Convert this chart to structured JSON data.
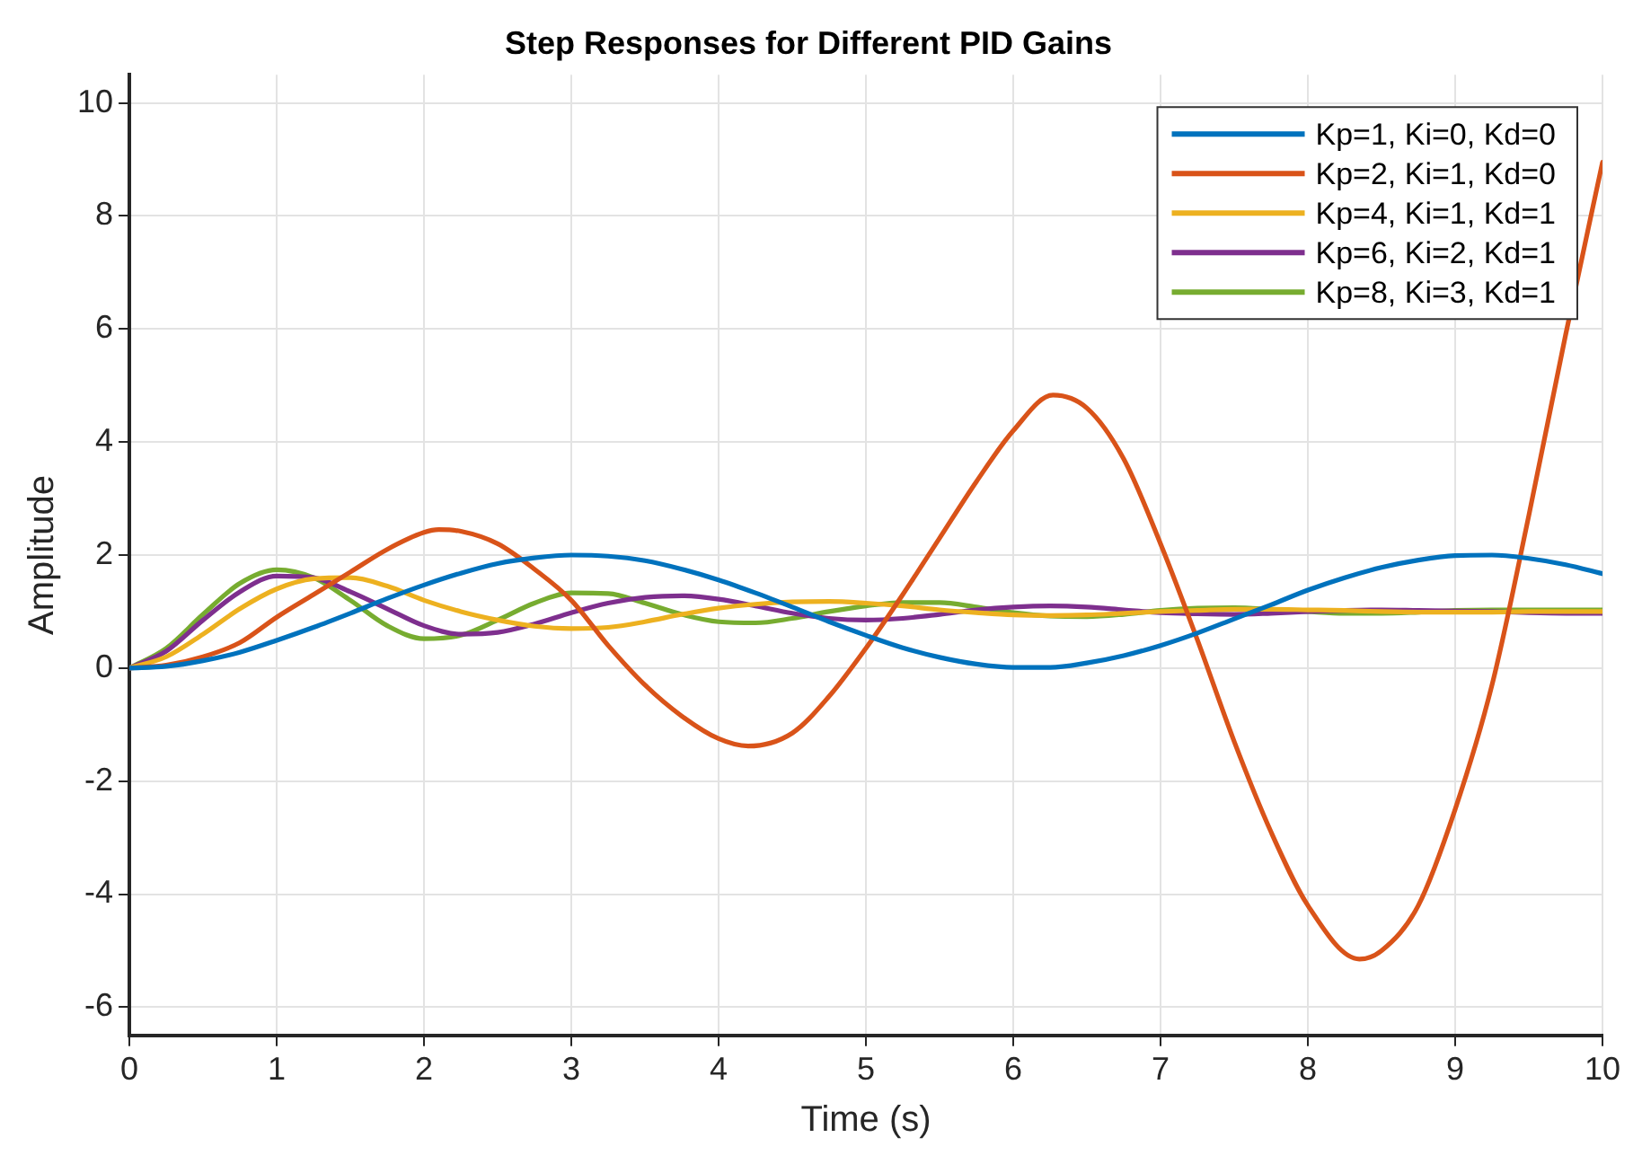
{
  "chart_data": {
    "type": "line",
    "title": "Step Responses for Different PID Gains",
    "xlabel": "Time (s)",
    "ylabel": "Amplitude",
    "x": [
      0,
      0.25,
      0.5,
      0.75,
      1,
      1.25,
      1.5,
      1.75,
      2,
      2.25,
      2.5,
      2.75,
      3,
      3.25,
      3.5,
      3.75,
      4,
      4.25,
      4.5,
      4.75,
      5,
      5.25,
      5.5,
      5.75,
      6,
      6.25,
      6.5,
      6.75,
      7,
      7.25,
      7.5,
      7.75,
      8,
      8.25,
      8.5,
      8.75,
      9,
      9.25,
      9.5,
      9.75,
      10
    ],
    "series": [
      {
        "name": "Kp=1, Ki=0, Kd=0",
        "color": "#0072bd",
        "values": [
          0,
          0.03,
          0.13,
          0.28,
          0.49,
          0.72,
          0.97,
          1.23,
          1.47,
          1.68,
          1.85,
          1.95,
          2.0,
          1.98,
          1.9,
          1.75,
          1.56,
          1.33,
          1.08,
          0.82,
          0.58,
          0.36,
          0.19,
          0.07,
          0.01,
          0.01,
          0.09,
          0.22,
          0.4,
          0.62,
          0.87,
          1.12,
          1.38,
          1.6,
          1.78,
          1.91,
          1.99,
          2.0,
          1.94,
          1.83,
          1.67
        ]
      },
      {
        "name": "Kp=2, Ki=1, Kd=0",
        "color": "#d95319",
        "x": [
          0,
          0.25,
          0.5,
          0.75,
          1,
          1.25,
          1.5,
          1.75,
          2,
          2.1,
          2.25,
          2.5,
          2.75,
          3,
          3.25,
          3.5,
          3.75,
          4,
          4.2,
          4.5,
          4.75,
          5,
          5.25,
          5.5,
          5.75,
          6,
          6.27,
          6.5,
          6.75,
          7,
          7.25,
          7.5,
          7.75,
          8,
          8.35,
          8.5,
          8.75,
          9,
          9.25,
          9.5,
          9.75,
          10
        ],
        "values": [
          0,
          0.05,
          0.2,
          0.45,
          0.9,
          1.3,
          1.7,
          2.1,
          2.4,
          2.45,
          2.42,
          2.2,
          1.75,
          1.2,
          0.4,
          -0.3,
          -0.85,
          -1.25,
          -1.38,
          -1.15,
          -0.5,
          0.35,
          1.3,
          2.3,
          3.3,
          4.2,
          4.83,
          4.6,
          3.7,
          2.2,
          0.5,
          -1.3,
          -2.9,
          -4.2,
          -5.15,
          -5.0,
          -4.2,
          -2.5,
          -0.3,
          2.7,
          5.9,
          8.95
        ]
      },
      {
        "name": "Kp=4, Ki=1, Kd=1",
        "color": "#edb120",
        "values": [
          0,
          0.2,
          0.6,
          1.05,
          1.4,
          1.58,
          1.6,
          1.45,
          1.2,
          1.0,
          0.85,
          0.74,
          0.7,
          0.72,
          0.82,
          0.95,
          1.06,
          1.13,
          1.17,
          1.18,
          1.15,
          1.1,
          1.03,
          0.98,
          0.94,
          0.93,
          0.94,
          0.97,
          1.0,
          1.02,
          1.04,
          1.04,
          1.03,
          1.02,
          1.0,
          0.99,
          0.99,
          0.99,
          1.0,
          1.0,
          1.0
        ]
      },
      {
        "name": "Kp=6, Ki=2, Kd=1",
        "color": "#7e2f8e",
        "values": [
          0,
          0.3,
          0.85,
          1.35,
          1.63,
          1.6,
          1.35,
          1.05,
          0.75,
          0.6,
          0.63,
          0.78,
          0.98,
          1.15,
          1.25,
          1.28,
          1.22,
          1.1,
          0.97,
          0.88,
          0.85,
          0.88,
          0.95,
          1.03,
          1.08,
          1.1,
          1.08,
          1.03,
          0.98,
          0.96,
          0.95,
          0.97,
          1.0,
          1.02,
          1.03,
          1.02,
          1.01,
          1.0,
          0.98,
          0.97,
          0.97
        ]
      },
      {
        "name": "Kp=8, Ki=3, Kd=1",
        "color": "#77ac30",
        "values": [
          0,
          0.35,
          0.95,
          1.5,
          1.74,
          1.6,
          1.2,
          0.75,
          0.52,
          0.58,
          0.85,
          1.15,
          1.33,
          1.32,
          1.15,
          0.95,
          0.82,
          0.8,
          0.88,
          1.0,
          1.1,
          1.16,
          1.16,
          1.08,
          0.98,
          0.92,
          0.91,
          0.95,
          1.02,
          1.06,
          1.07,
          1.04,
          1.0,
          0.97,
          0.97,
          0.99,
          1.02,
          1.03,
          1.03,
          1.03,
          1.03
        ]
      }
    ],
    "xlim": [
      0,
      10
    ],
    "xticks": [
      0,
      1,
      2,
      3,
      4,
      5,
      6,
      7,
      8,
      9,
      10
    ],
    "ylim": [
      -6.5,
      10.5
    ],
    "yticks": [
      -6,
      -4,
      -2,
      0,
      2,
      4,
      6,
      8,
      10
    ],
    "grid": true,
    "legend": "top right",
    "marker": "none",
    "line_style": "solid"
  }
}
